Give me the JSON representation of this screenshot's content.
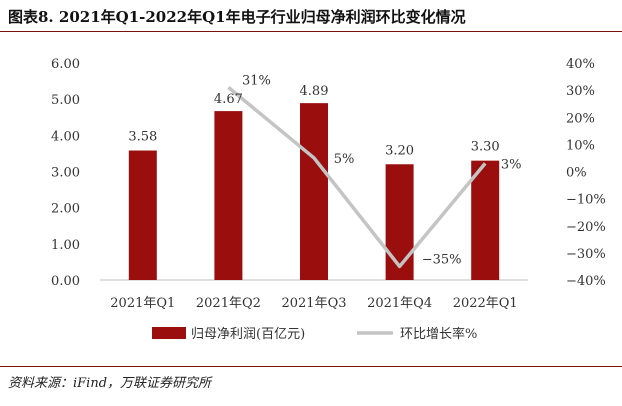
{
  "header": {
    "title": "图表8. 2021年Q1-2022年Q1年电子行业归母净利润环比变化情况"
  },
  "source": "资料来源：iFind，万联证券研究所",
  "chart_data": {
    "type": "bar",
    "categories": [
      "2021年Q1",
      "2021年Q2",
      "2021年Q3",
      "2021年Q4",
      "2022年Q1"
    ],
    "series": [
      {
        "name": "归母净利润(百亿元)",
        "type": "bar",
        "axis": "left",
        "values": [
          3.58,
          4.67,
          4.89,
          3.2,
          3.3
        ],
        "labels": [
          "3.58",
          "4.67",
          "4.89",
          "3.20",
          "3.30"
        ],
        "color": "#9b0e0e"
      },
      {
        "name": "环比增长率%",
        "type": "line",
        "axis": "right",
        "values": [
          null,
          31,
          5,
          -35,
          3
        ],
        "labels": [
          "",
          "31%",
          "5%",
          "−35%",
          "3%"
        ],
        "color": "#c4c4c4"
      }
    ],
    "y_left": {
      "ticks": [
        "6.00",
        "5.00",
        "4.00",
        "3.00",
        "2.00",
        "1.00",
        "0.00"
      ],
      "min": 0,
      "max": 6
    },
    "y_right": {
      "ticks": [
        "40%",
        "30%",
        "20%",
        "10%",
        "0%",
        "−10%",
        "−20%",
        "−30%",
        "−40%"
      ],
      "min": -40,
      "max": 40
    },
    "legend": "bottom"
  }
}
